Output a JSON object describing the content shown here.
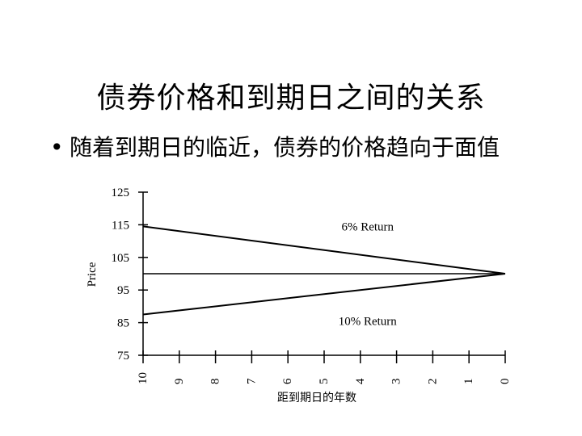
{
  "slide": {
    "title": "债券价格和到期日之间的关系",
    "bullet_marker": "•",
    "bullet_text": "随着到期日的临近，债券的价格趋向于面值"
  },
  "chart_data": {
    "type": "line",
    "title": "",
    "xlabel": "距到期日的年数",
    "ylabel": "Price",
    "x_categories": [
      "10",
      "9",
      "8",
      "7",
      "6",
      "5",
      "4",
      "3",
      "2",
      "1",
      "0"
    ],
    "xlim": [
      10,
      0
    ],
    "ylim": [
      75,
      125
    ],
    "y_ticks": [
      125,
      115,
      105,
      95,
      85,
      75
    ],
    "grid": false,
    "series": [
      {
        "name": "6% Return",
        "x": [
          10,
          0
        ],
        "y": [
          114.5,
          100
        ],
        "color": "#000000"
      },
      {
        "name": "10% Return",
        "x": [
          10,
          0
        ],
        "y": [
          87.5,
          100
        ],
        "color": "#000000"
      }
    ],
    "reference_line": {
      "y": 100,
      "x": [
        10,
        0
      ]
    },
    "annotations": [
      {
        "text": "6% Return",
        "x": 3.8,
        "y": 114.5
      },
      {
        "text": "10% Return",
        "x": 3.8,
        "y": 85.5
      }
    ]
  }
}
